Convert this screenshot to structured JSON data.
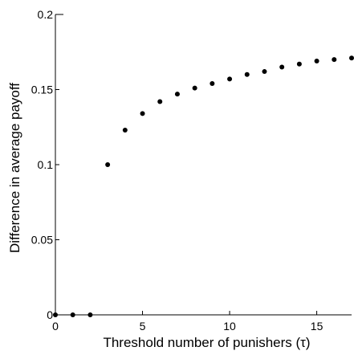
{
  "chart_data": {
    "type": "scatter",
    "title": "",
    "xlabel": "Threshold number of punishers (τ)",
    "ylabel": "Difference in average payoff",
    "xlim": [
      0,
      17
    ],
    "ylim": [
      0,
      0.2
    ],
    "grid": false,
    "legend": "none",
    "xticks": [
      0,
      5,
      10,
      15
    ],
    "xtick_labels": [
      "0",
      "5",
      "10",
      "15"
    ],
    "yticks": [
      0,
      0.05,
      0.1,
      0.15,
      0.2
    ],
    "ytick_labels": [
      "0",
      "0.05",
      "0.1",
      "0.15",
      "0.2"
    ],
    "series": [
      {
        "x": [
          0,
          1,
          2,
          3,
          4,
          5,
          6,
          7,
          8,
          9,
          10,
          11,
          12,
          13,
          14,
          15,
          16,
          17
        ],
        "y": [
          0,
          0,
          0,
          0.1,
          0.123,
          0.134,
          0.142,
          0.147,
          0.151,
          0.154,
          0.157,
          0.16,
          0.162,
          0.165,
          0.167,
          0.169,
          0.17,
          0.171
        ]
      }
    ],
    "marker_color": "#000000"
  }
}
